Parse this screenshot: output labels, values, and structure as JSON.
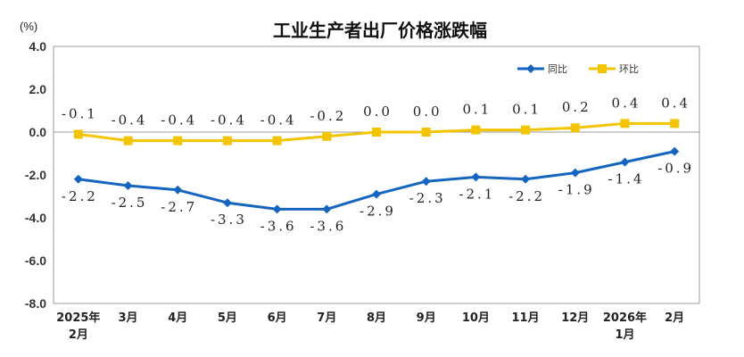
{
  "chart_data": {
    "type": "line",
    "title": "工业生产者出厂价格涨跌幅",
    "unit_label": "(%)",
    "categories": [
      [
        "2025年",
        "2月"
      ],
      [
        "3月"
      ],
      [
        "4月"
      ],
      [
        "5月"
      ],
      [
        "6月"
      ],
      [
        "7月"
      ],
      [
        "8月"
      ],
      [
        "9月"
      ],
      [
        "10月"
      ],
      [
        "11月"
      ],
      [
        "12月"
      ],
      [
        "2026年",
        "1月"
      ],
      [
        "2月"
      ]
    ],
    "ylim": [
      -8,
      4
    ],
    "yticks": [
      "4.0",
      "2.0",
      "0.0",
      "-2.0",
      "-4.0",
      "-6.0",
      "-8.0"
    ],
    "ytick_values": [
      4,
      2,
      0,
      -2,
      -4,
      -6,
      -8
    ],
    "grid": false,
    "legend_position": "top-right",
    "series": [
      {
        "name": "同比",
        "color": "#1565c0",
        "marker": "diamond",
        "label_position": "below",
        "values": [
          -2.2,
          -2.5,
          -2.7,
          -3.3,
          -3.6,
          -3.6,
          -2.9,
          -2.3,
          -2.1,
          -2.2,
          -1.9,
          -1.4,
          -0.9
        ],
        "labels": [
          "-2.2",
          "-2.5",
          "-2.7",
          "-3.3",
          "-3.6",
          "-3.6",
          "-2.9",
          "-2.3",
          "-2.1",
          "-2.2",
          "-1.9",
          "-1.4",
          "-0.9"
        ]
      },
      {
        "name": "环比",
        "color": "#f2c500",
        "marker": "square",
        "label_position": "above",
        "values": [
          -0.1,
          -0.4,
          -0.4,
          -0.4,
          -0.4,
          -0.2,
          0.0,
          0.0,
          0.1,
          0.1,
          0.2,
          0.4,
          0.4
        ],
        "labels": [
          "-0.1",
          "-0.4",
          "-0.4",
          "-0.4",
          "-0.4",
          "-0.2",
          "0.0",
          "0.0",
          "0.1",
          "0.1",
          "0.2",
          "0.4",
          "0.4"
        ]
      }
    ]
  }
}
